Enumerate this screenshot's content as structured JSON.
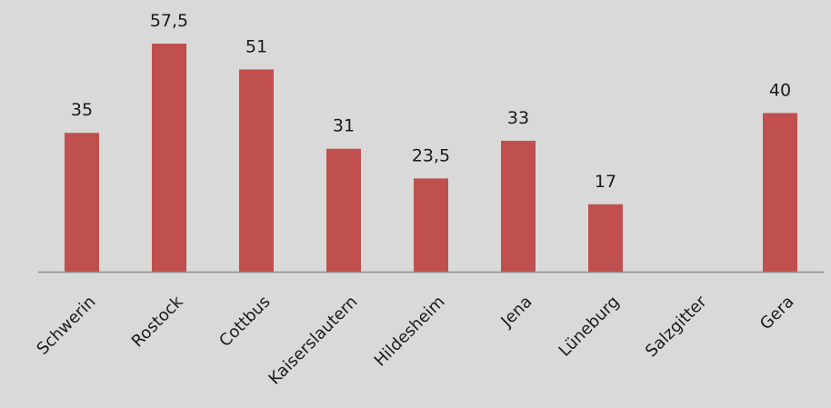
{
  "chart_data": {
    "type": "bar",
    "title": "",
    "xlabel": "",
    "ylabel": "",
    "categories": [
      "Schwerin",
      "Rostock",
      "Cottbus",
      "Kaiserslautern",
      "Hildesheim",
      "Jena",
      "Lüneburg",
      "Salzgitter",
      "Gera"
    ],
    "values": [
      35,
      57.5,
      51,
      31,
      23.5,
      33,
      17,
      null,
      40
    ],
    "data_labels": [
      "35",
      "57,5",
      "51",
      "31",
      "23,5",
      "33",
      "17",
      "",
      "40"
    ],
    "ylim": [
      0,
      57.5
    ],
    "grid": false,
    "legend": "none",
    "bar_color": "#c0504d",
    "background_color": "#d9d9d9"
  }
}
